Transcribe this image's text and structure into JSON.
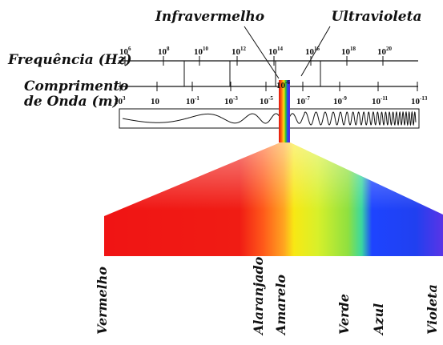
{
  "labels": {
    "infrared": "Infravermelho",
    "ultraviolet": "Ultravioleta",
    "frequency_axis": "Frequência (Hz)",
    "wavelength_line1": "Comprimento",
    "wavelength_line2": "de Onda (m)"
  },
  "frequency_ticks": [
    {
      "base": "10",
      "exp": "6"
    },
    {
      "base": "10",
      "exp": "8"
    },
    {
      "base": "10",
      "exp": "10"
    },
    {
      "base": "10",
      "exp": "12"
    },
    {
      "base": "10",
      "exp": "14"
    },
    {
      "base": "10",
      "exp": "16"
    },
    {
      "base": "10",
      "exp": "18"
    },
    {
      "base": "10",
      "exp": "20"
    }
  ],
  "wavelength_ticks": [
    {
      "base": "10",
      "exp": "3"
    },
    {
      "base": "10",
      "exp": ""
    },
    {
      "base": "10",
      "exp": "-1"
    },
    {
      "base": "10",
      "exp": "-3"
    },
    {
      "base": "10",
      "exp": "-5"
    },
    {
      "base": "10",
      "exp": "-7"
    },
    {
      "base": "10",
      "exp": "-9"
    },
    {
      "base": "10",
      "exp": "-11"
    },
    {
      "base": "10",
      "exp": "-13"
    }
  ],
  "visible_marker": {
    "base": "10",
    "exp": "-6"
  },
  "colors": [
    {
      "name": "Vermelho",
      "hex": "#f01010"
    },
    {
      "name": "Alaranjado",
      "hex": "#ff8a1c"
    },
    {
      "name": "Amarelo",
      "hex": "#f6ee10"
    },
    {
      "name": "Verde",
      "hex": "#6ce23a"
    },
    {
      "name": "Azul",
      "hex": "#1a3cff"
    },
    {
      "name": "Violeta",
      "hex": "#5a28e8"
    }
  ]
}
